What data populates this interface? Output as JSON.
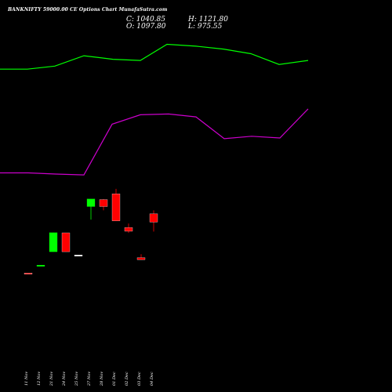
{
  "header": {
    "title": "BANKNIFTY 59000.00 CE Options Chart MunafaSutra.com",
    "close_label": "C: 1040.85",
    "open_label": "O: 1097.80",
    "high_label": "H: 1121.80",
    "low_label": "L: 975.55"
  },
  "colors": {
    "background": "#000000",
    "up": "#00ff00",
    "down": "#ff0000",
    "doji": "#ffffff",
    "ma_upper": "#00ff00",
    "ma_lower": "#cc00cc"
  },
  "chart_data": {
    "type": "candlestick",
    "title": "BANKNIFTY 59000.00 CE Options Chart MunafaSutra.com",
    "x_tick_labels": [
      "11 Nov",
      "12 Nov",
      "21 Nov",
      "24 Nov",
      "25 Nov",
      "27 Nov",
      "28 Nov",
      "01 Dec",
      "02 Dec",
      "03 Dec",
      "04 Dec"
    ],
    "last_candle": {
      "open": 1097.8,
      "high": 1121.8,
      "low": 975.55,
      "close": 1040.85
    },
    "price_range": [
      600,
      2300
    ],
    "candles": [
      {
        "date": "11 Nov",
        "open": 690,
        "high": 690,
        "low": 690,
        "close": 690,
        "color": "down"
      },
      {
        "date": "12 Nov",
        "open": 740,
        "high": 745,
        "low": 740,
        "close": 745,
        "color": "up"
      },
      {
        "date": "21 Nov",
        "open": 837,
        "high": 968,
        "low": 837,
        "close": 968,
        "color": "up"
      },
      {
        "date": "24 Nov",
        "open": 967,
        "high": 967,
        "low": 837,
        "close": 837,
        "color": "down"
      },
      {
        "date": "25 Nov",
        "open": 815,
        "high": 815,
        "low": 815,
        "close": 815,
        "color": "doji"
      },
      {
        "date": "27 Nov",
        "open": 1148,
        "high": 1200,
        "low": 1058,
        "close": 1200,
        "color": "up"
      },
      {
        "date": "28 Nov",
        "open": 1196,
        "high": 1200,
        "low": 1122,
        "close": 1148,
        "color": "down"
      },
      {
        "date": "01 Dec",
        "open": 1236,
        "high": 1270,
        "low": 1049,
        "close": 1049,
        "color": "down"
      },
      {
        "date": "02 Dec",
        "open": 1003,
        "high": 1031,
        "low": 966,
        "close": 978,
        "color": "down"
      },
      {
        "date": "03 Dec",
        "open": 796,
        "high": 820,
        "low": 782,
        "close": 782,
        "color": "down"
      },
      {
        "date": "04 Dec",
        "open": 1097.8,
        "high": 1121.8,
        "low": 975.55,
        "close": 1040.85,
        "color": "down"
      }
    ],
    "series": [
      {
        "name": "",
        "color": "#00ff00",
        "points": [
          [
            0,
            2094
          ],
          [
            35,
            2094
          ],
          [
            70,
            2115
          ],
          [
            107,
            2186
          ],
          [
            144,
            2162
          ],
          [
            179,
            2154
          ],
          [
            213,
            2265
          ],
          [
            250,
            2252
          ],
          [
            285,
            2232
          ],
          [
            320,
            2200
          ],
          [
            356,
            2126
          ],
          [
            393,
            2154
          ]
        ]
      },
      {
        "name": "",
        "color": "#cc00cc",
        "points": [
          [
            0,
            1380
          ],
          [
            36,
            1380
          ],
          [
            71,
            1372
          ],
          [
            107,
            1366
          ],
          [
            143,
            1715
          ],
          [
            179,
            1780
          ],
          [
            215,
            1785
          ],
          [
            250,
            1765
          ],
          [
            286,
            1615
          ],
          [
            321,
            1632
          ],
          [
            357,
            1620
          ],
          [
            393,
            1820
          ]
        ]
      }
    ]
  }
}
